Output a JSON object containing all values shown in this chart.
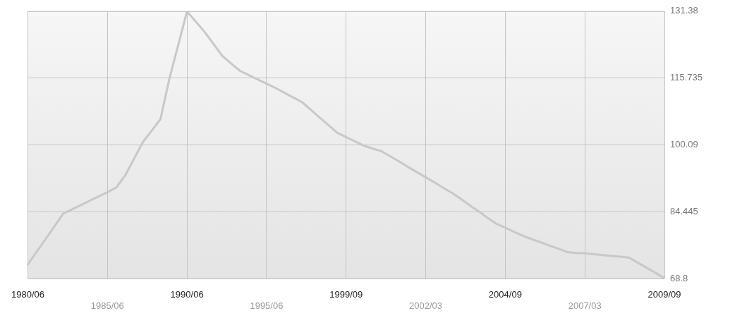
{
  "chart_data": {
    "type": "line",
    "categories": [
      "1980/06",
      null,
      null,
      null,
      null,
      null,
      null,
      null,
      null,
      "1985/06",
      null,
      null,
      null,
      null,
      null,
      null,
      null,
      null,
      "1990/06",
      null,
      null,
      null,
      null,
      null,
      null,
      null,
      null,
      "1995/06",
      null,
      null,
      null,
      null,
      null,
      null,
      null,
      null,
      "1999/09",
      null,
      null,
      null,
      null,
      null,
      null,
      null,
      null,
      "2002/03",
      null,
      null,
      null,
      null,
      null,
      null,
      null,
      null,
      "2004/09",
      null,
      null,
      null,
      null,
      null,
      null,
      null,
      null,
      "2007/03",
      null,
      null,
      null,
      null,
      null,
      null,
      null,
      null,
      "2009/09"
    ],
    "series": [
      {
        "color": "#c8c8c8",
        "values": [
          72.1,
          75.1,
          78.0,
          81.0,
          84.0,
          85.0,
          86.0,
          87.0,
          88.0,
          89.0,
          90.1,
          92.9,
          96.8,
          100.7,
          103.4,
          106.1,
          115.5,
          123.4,
          131.3,
          128.9,
          126.5,
          123.7,
          120.9,
          119.1,
          117.4,
          116.4,
          115.4,
          114.4,
          113.4,
          112.3,
          111.2,
          110.1,
          108.3,
          106.5,
          104.7,
          102.9,
          101.9,
          100.9,
          99.9,
          99.2,
          98.6,
          97.4,
          96.2,
          94.9,
          93.7,
          92.5,
          91.3,
          90.0,
          88.8,
          87.4,
          85.9,
          84.5,
          83.0,
          81.6,
          80.7,
          79.7,
          78.8,
          78.0,
          77.3,
          76.5,
          75.8,
          75.0,
          74.8,
          74.7,
          74.5,
          74.3,
          74.1,
          73.9,
          73.7,
          72.5,
          71.3,
          70.1,
          68.9
        ]
      }
    ],
    "ylim": [
      68.8,
      131.38
    ],
    "yticks": [
      68.8,
      84.445,
      100.09,
      115.735,
      131.38
    ],
    "grid": true,
    "marker": "none",
    "line_style": "solid"
  }
}
